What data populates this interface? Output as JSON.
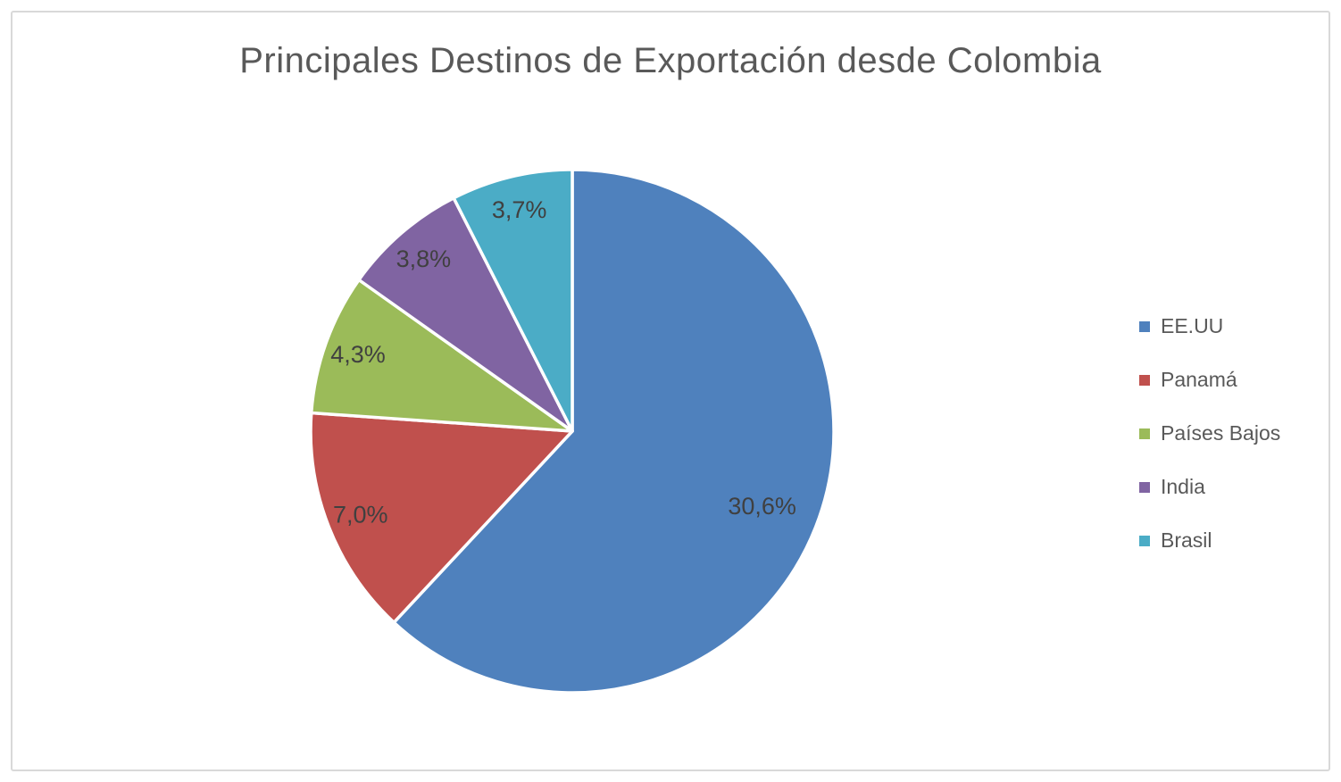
{
  "chart_data": {
    "type": "pie",
    "title": "Principales Destinos de Exportación desde Colombia",
    "categories": [
      "EE.UU",
      "Panamá",
      "Países Bajos",
      "India",
      "Brasil"
    ],
    "values": [
      30.6,
      7.0,
      4.3,
      3.8,
      3.7
    ],
    "value_labels": [
      "30,6%",
      "7,0%",
      "4,3%",
      "3,8%",
      "3,7%"
    ],
    "colors": [
      "#4F81BD",
      "#C0504D",
      "#9BBB59",
      "#8064A2",
      "#4BACC6"
    ],
    "legend_position": "right",
    "start_angle_deg": 0,
    "direction": "clockwise",
    "slice_angle_basis": "share_of_sum",
    "slice_separator_color": "#FFFFFF",
    "title_color": "#595959",
    "legend_text_color": "#595959",
    "data_label_color": "#404040",
    "background_color": "#FFFFFF",
    "frame_border_color": "#D9D9D9"
  }
}
